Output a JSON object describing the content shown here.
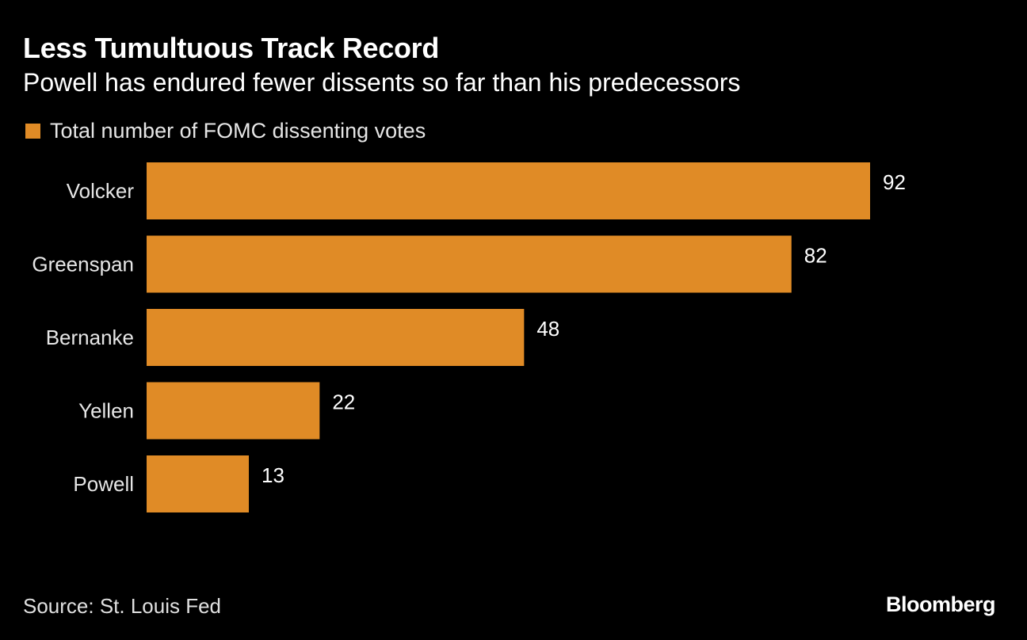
{
  "header": {
    "title": "Less Tumultuous Track Record",
    "subtitle": "Powell has endured fewer dissents so far than his predecessors"
  },
  "footer": {
    "source": "Source: St. Louis Fed",
    "brand": "Bloomberg"
  },
  "colors": {
    "background": "#000000",
    "bar": "#E08B26",
    "text": "#FFFFFF"
  },
  "chart_data": {
    "type": "bar",
    "orientation": "horizontal",
    "title": "Less Tumultuous Track Record",
    "subtitle": "Powell has endured fewer dissents so far than his predecessors",
    "categories": [
      "Volcker",
      "Greenspan",
      "Bernanke",
      "Yellen",
      "Powell"
    ],
    "series": [
      {
        "name": "Total number of FOMC dissenting votes",
        "values": [
          92,
          82,
          48,
          22,
          13
        ]
      }
    ],
    "xlim": [
      0,
      92
    ],
    "data_labels": true,
    "grid": false,
    "legend_position": "top-left"
  }
}
